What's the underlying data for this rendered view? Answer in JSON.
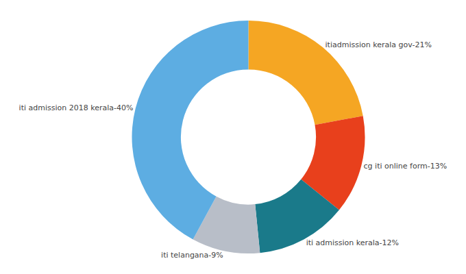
{
  "chart_data": {
    "type": "donut",
    "categories": [
      "itiadmission kerala gov",
      "cg iti online form",
      "iti admission kerala",
      "iti telangana",
      "iti admission 2018 kerala"
    ],
    "values": [
      21,
      13,
      12,
      9,
      40
    ],
    "value_labels": [
      "itiadmission kerala gov-21%",
      "cg iti online form-13%",
      "iti admission kerala-12%",
      "iti telangana-9%",
      "iti admission 2018 kerala-40%"
    ],
    "colors": [
      "#F5A623",
      "#E8401C",
      "#1A7A8A",
      "#B8BEC8",
      "#5DADE2"
    ],
    "data_labels": true
  }
}
